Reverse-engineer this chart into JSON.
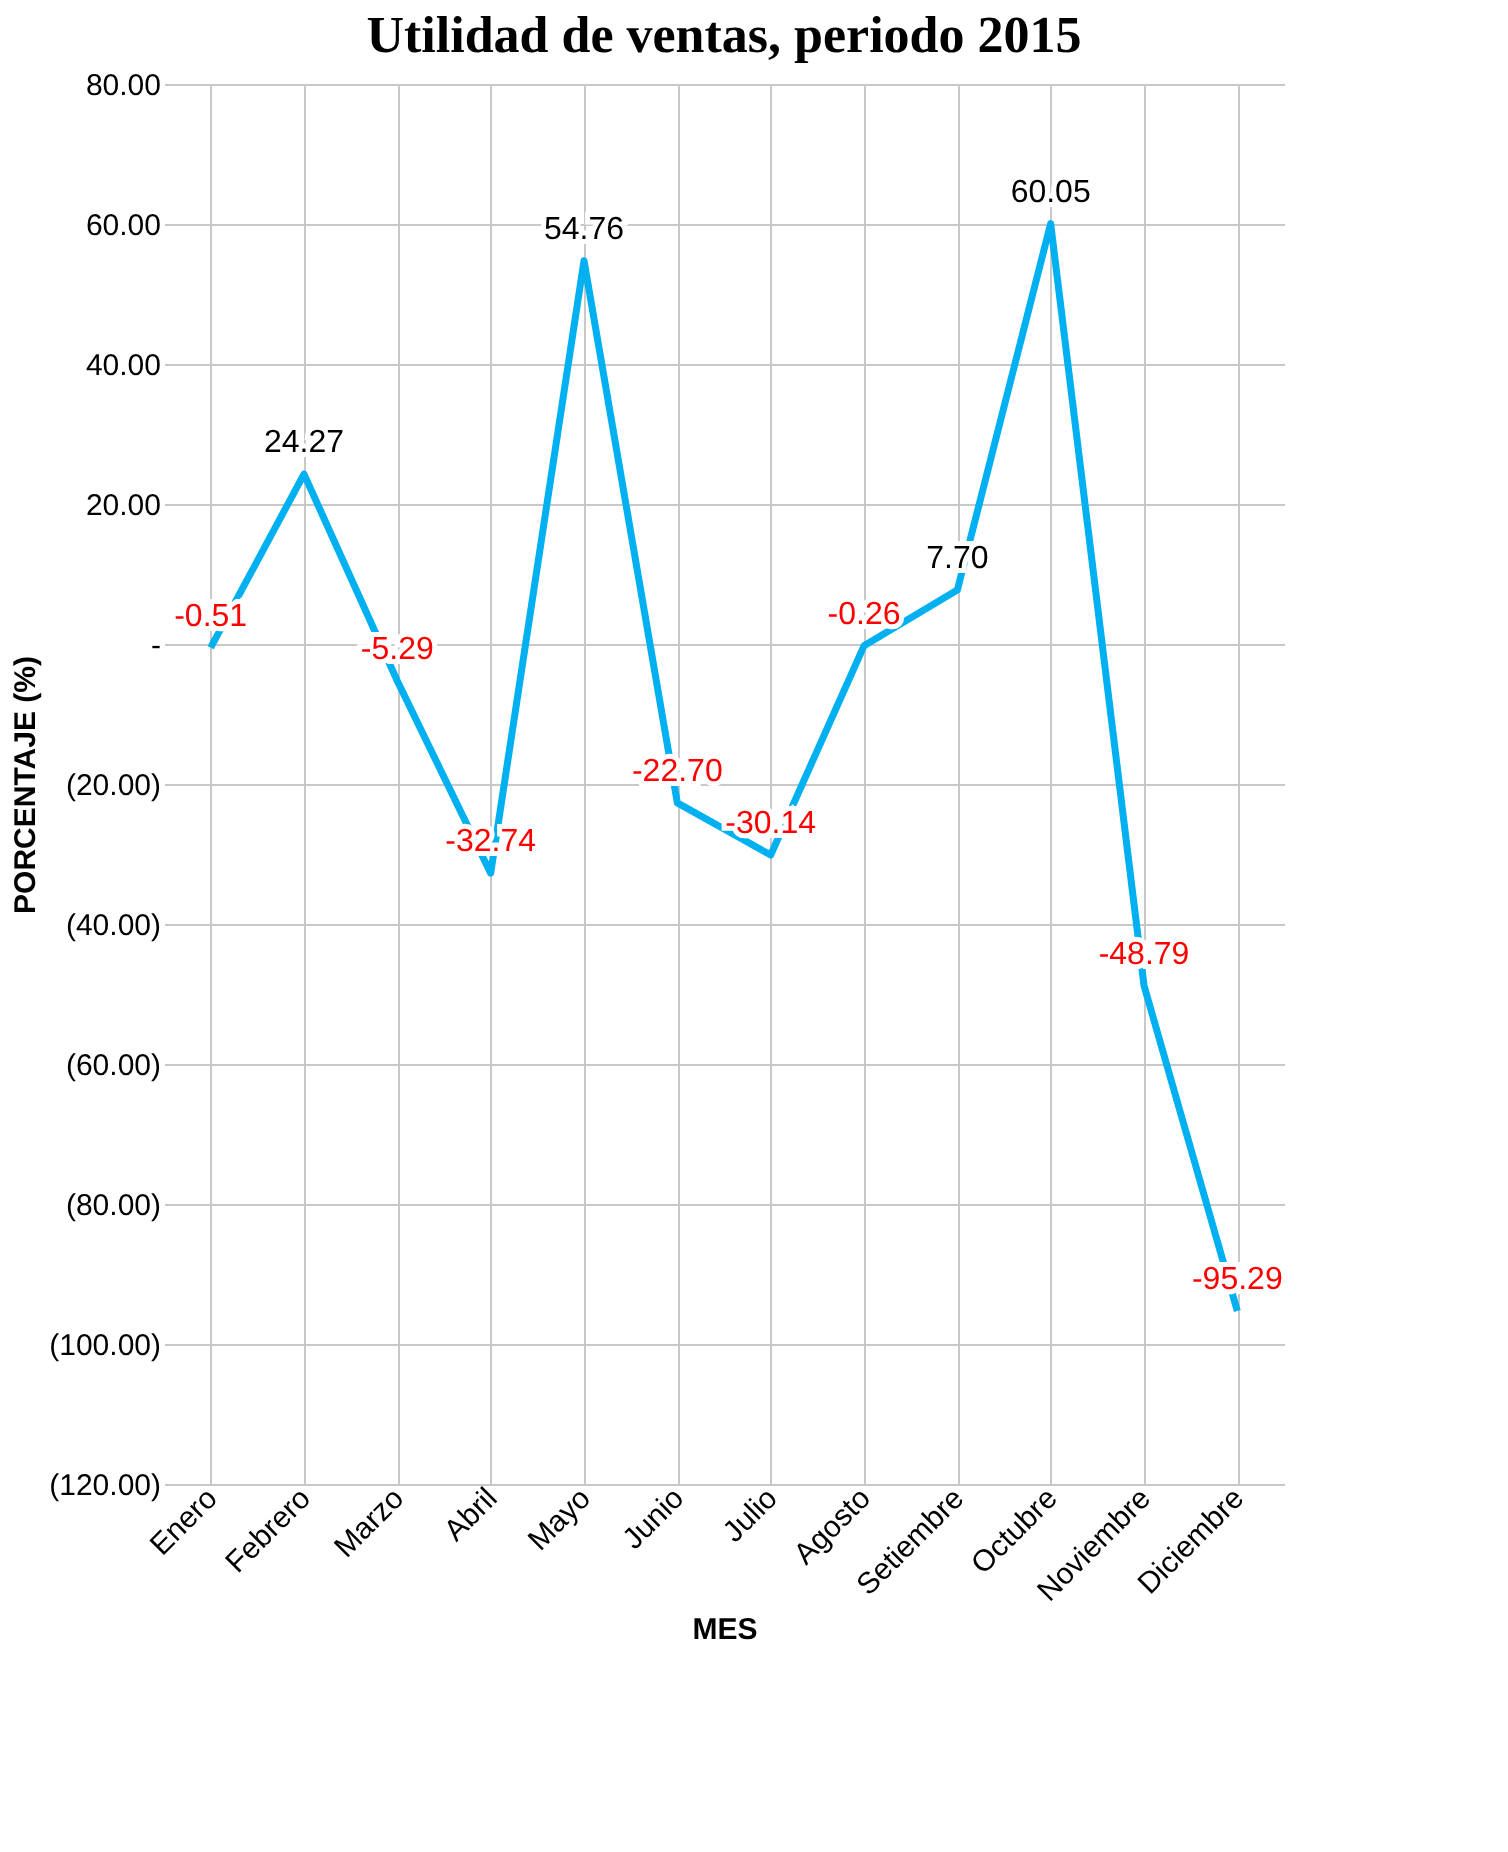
{
  "chart_data": {
    "type": "line",
    "title": "Utilidad de ventas, periodo 2015",
    "xlabel": "MES",
    "ylabel": "PORCENTAJE (%)",
    "categories": [
      "Enero",
      "Febrero",
      "Marzo",
      "Abril",
      "Mayo",
      "Junio",
      "Julio",
      "Agosto",
      "Setiembre",
      "Octubre",
      "Noviembre",
      "Diciembre"
    ],
    "series": [
      {
        "color": "#00b0f0",
        "values": [
          -0.51,
          24.27,
          -5.29,
          -32.74,
          54.76,
          -22.7,
          -30.14,
          -0.26,
          7.7,
          60.05,
          -48.79,
          -95.29
        ],
        "value_labels": [
          "-0.51",
          "24.27",
          "-5.29",
          "-32.74",
          "54.76",
          "-22.70",
          "-30.14",
          "-0.26",
          "7.70",
          "60.05",
          "-48.79",
          "-95.29"
        ]
      }
    ],
    "ylim": [
      -120,
      80
    ],
    "yticks": [
      {
        "value": -120,
        "label": "(120.00)"
      },
      {
        "value": -100,
        "label": "(100.00)"
      },
      {
        "value": -80,
        "label": "(80.00)"
      },
      {
        "value": -60,
        "label": "(60.00)"
      },
      {
        "value": -40,
        "label": "(40.00)"
      },
      {
        "value": -20,
        "label": "(20.00)"
      },
      {
        "value": 0,
        "label": "-"
      },
      {
        "value": 20,
        "label": "20.00"
      },
      {
        "value": 40,
        "label": "40.00"
      },
      {
        "value": 60,
        "label": "60.00"
      },
      {
        "value": 80,
        "label": "80.00"
      }
    ],
    "grid": true,
    "marker": "none",
    "line_style": "solid"
  }
}
